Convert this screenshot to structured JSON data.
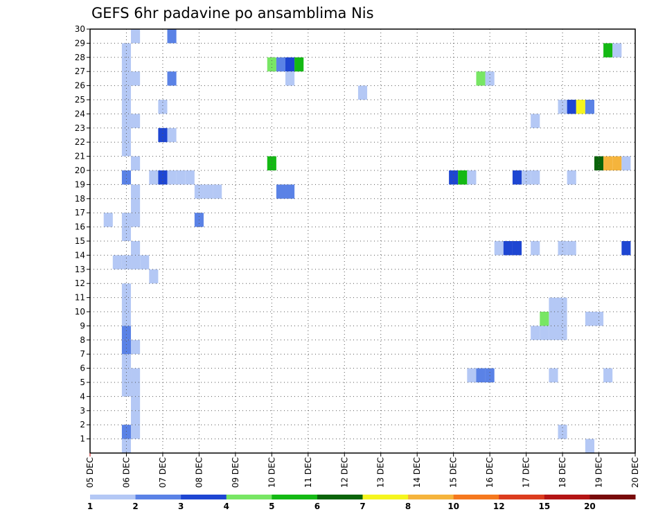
{
  "chart_data": {
    "type": "heatmap",
    "title": "GEFS 6hr padavine po ansamblima Nis",
    "x_tick_labels": [
      "05 DEC",
      "06 DEC",
      "07 DEC",
      "08 DEC",
      "09 DEC",
      "10 DEC",
      "11 DEC",
      "12 DEC",
      "13 DEC",
      "14 DEC",
      "15 DEC",
      "16 DEC",
      "17 DEC",
      "18 DEC",
      "19 DEC",
      "20 DEC"
    ],
    "y_tick_labels": [
      "1",
      "2",
      "3",
      "4",
      "5",
      "6",
      "7",
      "8",
      "9",
      "10",
      "11",
      "12",
      "13",
      "14",
      "15",
      "16",
      "17",
      "18",
      "19",
      "20",
      "21",
      "22",
      "23",
      "24",
      "25",
      "26",
      "27",
      "28",
      "29",
      "30"
    ],
    "xlim_days": [
      5,
      20
    ],
    "ylim_members": [
      0,
      30
    ],
    "grid": "dotted",
    "colorbar": {
      "labels": [
        "1",
        "2",
        "3",
        "4",
        "5",
        "6",
        "7",
        "8",
        "10",
        "12",
        "15",
        "20"
      ],
      "colors": [
        "#b4c8f5",
        "#5a82e6",
        "#1e46d2",
        "#78e664",
        "#14b914",
        "#0a640a",
        "#f5f51e",
        "#f5b43c",
        "#f5781e",
        "#dc3c1e",
        "#b41414",
        "#780a0a"
      ]
    },
    "cells": [
      {
        "d": 6.0,
        "m": 0.5,
        "v": 1
      },
      {
        "d": 6.0,
        "m": 1.5,
        "v": 2
      },
      {
        "d": 6.25,
        "m": 1.5,
        "v": 1
      },
      {
        "d": 6.25,
        "m": 2.5,
        "v": 1
      },
      {
        "d": 6.25,
        "m": 3.5,
        "v": 1
      },
      {
        "d": 6.0,
        "m": 4.5,
        "v": 1
      },
      {
        "d": 6.25,
        "m": 4.5,
        "v": 1
      },
      {
        "d": 6.0,
        "m": 5.5,
        "v": 1
      },
      {
        "d": 6.25,
        "m": 5.5,
        "v": 1
      },
      {
        "d": 6.0,
        "m": 6.5,
        "v": 1
      },
      {
        "d": 6.0,
        "m": 7.5,
        "v": 2
      },
      {
        "d": 6.25,
        "m": 7.5,
        "v": 1
      },
      {
        "d": 6.0,
        "m": 8.5,
        "v": 2
      },
      {
        "d": 6.0,
        "m": 9.5,
        "v": 1
      },
      {
        "d": 6.0,
        "m": 10.5,
        "v": 1
      },
      {
        "d": 6.0,
        "m": 11.5,
        "v": 1
      },
      {
        "d": 6.75,
        "m": 12.5,
        "v": 1
      },
      {
        "d": 5.75,
        "m": 13.5,
        "v": 1
      },
      {
        "d": 6.0,
        "m": 13.5,
        "v": 1
      },
      {
        "d": 6.25,
        "m": 13.5,
        "v": 1
      },
      {
        "d": 6.5,
        "m": 13.5,
        "v": 1
      },
      {
        "d": 6.25,
        "m": 14.5,
        "v": 1
      },
      {
        "d": 6.0,
        "m": 15.5,
        "v": 1
      },
      {
        "d": 5.5,
        "m": 16.5,
        "v": 1
      },
      {
        "d": 6.0,
        "m": 16.5,
        "v": 1
      },
      {
        "d": 6.25,
        "m": 16.5,
        "v": 1
      },
      {
        "d": 6.25,
        "m": 17.5,
        "v": 1
      },
      {
        "d": 6.25,
        "m": 18.5,
        "v": 1
      },
      {
        "d": 6.0,
        "m": 19.5,
        "v": 2
      },
      {
        "d": 6.75,
        "m": 19.5,
        "v": 1
      },
      {
        "d": 7.0,
        "m": 19.5,
        "v": 3
      },
      {
        "d": 7.25,
        "m": 19.5,
        "v": 1
      },
      {
        "d": 7.5,
        "m": 19.5,
        "v": 1
      },
      {
        "d": 7.75,
        "m": 19.5,
        "v": 1
      },
      {
        "d": 6.25,
        "m": 20.5,
        "v": 1
      },
      {
        "d": 6.0,
        "m": 21.5,
        "v": 1
      },
      {
        "d": 6.0,
        "m": 22.5,
        "v": 1
      },
      {
        "d": 7.0,
        "m": 22.5,
        "v": 3
      },
      {
        "d": 7.25,
        "m": 22.5,
        "v": 1
      },
      {
        "d": 6.0,
        "m": 23.5,
        "v": 1
      },
      {
        "d": 6.25,
        "m": 23.5,
        "v": 1
      },
      {
        "d": 6.0,
        "m": 24.5,
        "v": 1
      },
      {
        "d": 7.0,
        "m": 24.5,
        "v": 1
      },
      {
        "d": 6.0,
        "m": 25.5,
        "v": 1
      },
      {
        "d": 6.0,
        "m": 26.5,
        "v": 1
      },
      {
        "d": 6.25,
        "m": 26.5,
        "v": 1
      },
      {
        "d": 7.25,
        "m": 26.5,
        "v": 2
      },
      {
        "d": 6.0,
        "m": 27.5,
        "v": 1
      },
      {
        "d": 6.0,
        "m": 28.5,
        "v": 1
      },
      {
        "d": 6.25,
        "m": 29.5,
        "v": 1
      },
      {
        "d": 7.25,
        "m": 29.5,
        "v": 2
      },
      {
        "d": 8.0,
        "m": 16.5,
        "v": 2
      },
      {
        "d": 8.0,
        "m": 18.5,
        "v": 1
      },
      {
        "d": 8.25,
        "m": 18.5,
        "v": 1
      },
      {
        "d": 8.5,
        "m": 18.5,
        "v": 1
      },
      {
        "d": 10.0,
        "m": 20.5,
        "v": 5
      },
      {
        "d": 10.0,
        "m": 27.5,
        "v": 4
      },
      {
        "d": 10.25,
        "m": 27.5,
        "v": 2
      },
      {
        "d": 10.5,
        "m": 27.5,
        "v": 3
      },
      {
        "d": 10.75,
        "m": 27.5,
        "v": 5
      },
      {
        "d": 10.5,
        "m": 26.5,
        "v": 1
      },
      {
        "d": 10.25,
        "m": 18.5,
        "v": 2
      },
      {
        "d": 10.5,
        "m": 18.5,
        "v": 2
      },
      {
        "d": 12.5,
        "m": 25.5,
        "v": 1
      },
      {
        "d": 15.0,
        "m": 19.5,
        "v": 3
      },
      {
        "d": 15.25,
        "m": 19.5,
        "v": 5
      },
      {
        "d": 15.5,
        "m": 19.5,
        "v": 1
      },
      {
        "d": 15.5,
        "m": 5.5,
        "v": 1
      },
      {
        "d": 15.75,
        "m": 5.5,
        "v": 2
      },
      {
        "d": 16.0,
        "m": 5.5,
        "v": 2
      },
      {
        "d": 15.75,
        "m": 26.5,
        "v": 4
      },
      {
        "d": 16.0,
        "m": 26.5,
        "v": 1
      },
      {
        "d": 16.25,
        "m": 14.5,
        "v": 1
      },
      {
        "d": 16.5,
        "m": 14.5,
        "v": 3
      },
      {
        "d": 16.75,
        "m": 14.5,
        "v": 3
      },
      {
        "d": 16.75,
        "m": 19.5,
        "v": 3
      },
      {
        "d": 17.0,
        "m": 19.5,
        "v": 1
      },
      {
        "d": 17.25,
        "m": 19.5,
        "v": 1
      },
      {
        "d": 17.25,
        "m": 14.5,
        "v": 1
      },
      {
        "d": 17.25,
        "m": 23.5,
        "v": 1
      },
      {
        "d": 17.25,
        "m": 8.5,
        "v": 1
      },
      {
        "d": 17.5,
        "m": 8.5,
        "v": 1
      },
      {
        "d": 17.75,
        "m": 8.5,
        "v": 1
      },
      {
        "d": 18.0,
        "m": 8.5,
        "v": 1
      },
      {
        "d": 17.5,
        "m": 9.5,
        "v": 4
      },
      {
        "d": 17.75,
        "m": 9.5,
        "v": 1
      },
      {
        "d": 18.0,
        "m": 9.5,
        "v": 1
      },
      {
        "d": 17.75,
        "m": 10.5,
        "v": 1
      },
      {
        "d": 18.0,
        "m": 10.5,
        "v": 1
      },
      {
        "d": 17.75,
        "m": 5.5,
        "v": 1
      },
      {
        "d": 18.0,
        "m": 1.5,
        "v": 1
      },
      {
        "d": 18.0,
        "m": 14.5,
        "v": 1
      },
      {
        "d": 18.25,
        "m": 14.5,
        "v": 1
      },
      {
        "d": 18.25,
        "m": 19.5,
        "v": 1
      },
      {
        "d": 18.0,
        "m": 24.5,
        "v": 1
      },
      {
        "d": 18.25,
        "m": 24.5,
        "v": 3
      },
      {
        "d": 18.5,
        "m": 24.5,
        "v": 7
      },
      {
        "d": 18.75,
        "m": 24.5,
        "v": 2
      },
      {
        "d": 18.75,
        "m": 9.5,
        "v": 1
      },
      {
        "d": 19.0,
        "m": 9.5,
        "v": 1
      },
      {
        "d": 18.75,
        "m": 0.5,
        "v": 1
      },
      {
        "d": 19.25,
        "m": 5.5,
        "v": 1
      },
      {
        "d": 19.0,
        "m": 20.5,
        "v": 6
      },
      {
        "d": 19.25,
        "m": 20.5,
        "v": 8
      },
      {
        "d": 19.5,
        "m": 20.5,
        "v": 8
      },
      {
        "d": 19.75,
        "m": 20.5,
        "v": 1
      },
      {
        "d": 19.25,
        "m": 28.5,
        "v": 5
      },
      {
        "d": 19.5,
        "m": 28.5,
        "v": 1
      },
      {
        "d": 19.75,
        "m": 14.5,
        "v": 3
      }
    ]
  }
}
